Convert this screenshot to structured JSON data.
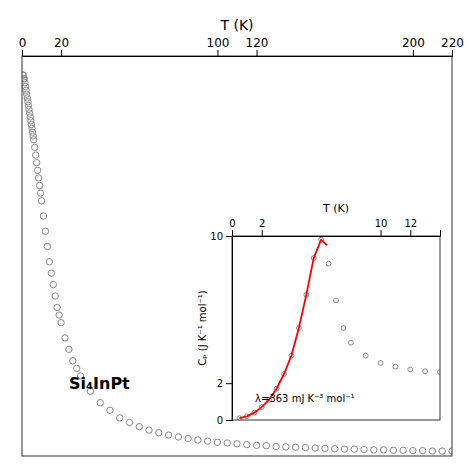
{
  "chart_data": [
    {
      "type": "scatter",
      "xlabel": "T (K)",
      "annotations": [
        "Si₄InPt"
      ],
      "x": [
        0.3,
        0.6,
        0.9,
        1.2,
        1.5,
        1.8,
        2.1,
        2.4,
        2.7,
        3.0,
        3.3,
        3.6,
        3.9,
        4.2,
        4.5,
        4.8,
        5.1,
        5.4,
        5.7,
        6.0,
        6.5,
        7.0,
        7.5,
        8.0,
        8.5,
        9.0,
        9.5,
        10.0,
        11.0,
        12.0,
        13.0,
        14.0,
        15.0,
        16.0,
        17.0,
        18.0,
        19.0,
        20.0,
        22.0,
        24.0,
        26.0,
        28.0,
        30.0,
        35.0,
        40.0,
        45.0,
        50.0,
        55.0,
        60.0,
        65.0,
        70.0,
        75.0,
        80.0,
        85.0,
        90.0,
        95.0,
        100.0,
        105.0,
        110.0,
        115.0,
        120.0,
        125.0,
        130.0,
        135.0,
        140.0,
        145.0,
        150.0,
        155.0,
        160.0,
        165.0,
        170.0,
        175.0,
        180.0,
        185.0,
        190.0,
        195.0,
        200.0,
        205.0,
        210.0,
        215.0,
        220.0
      ],
      "values": [
        1.0,
        1.0,
        0.99,
        0.99,
        0.98,
        0.97,
        0.96,
        0.95,
        0.94,
        0.93,
        0.92,
        0.91,
        0.9,
        0.89,
        0.88,
        0.87,
        0.86,
        0.85,
        0.84,
        0.83,
        0.81,
        0.79,
        0.77,
        0.75,
        0.73,
        0.71,
        0.69,
        0.67,
        0.63,
        0.59,
        0.55,
        0.51,
        0.48,
        0.45,
        0.42,
        0.39,
        0.37,
        0.35,
        0.31,
        0.28,
        0.25,
        0.23,
        0.21,
        0.17,
        0.14,
        0.12,
        0.1,
        0.088,
        0.077,
        0.068,
        0.061,
        0.055,
        0.05,
        0.046,
        0.042,
        0.039,
        0.036,
        0.034,
        0.032,
        0.03,
        0.028,
        0.027,
        0.025,
        0.024,
        0.023,
        0.022,
        0.021,
        0.02,
        0.019,
        0.018,
        0.018,
        0.017,
        0.016,
        0.016,
        0.015,
        0.015,
        0.014,
        0.014,
        0.013,
        0.013,
        0.013
      ],
      "color": "#888888",
      "marker": "circle",
      "xlim": [
        0,
        220
      ],
      "xticks": [
        0,
        20,
        100,
        120,
        200,
        220
      ],
      "ylim": [
        0,
        1.05
      ],
      "tick_labels": "x"
    },
    {
      "type": "scatter",
      "xlabel": "T (K)",
      "ylabel": "Cₚ (J K⁻¹ mol⁻¹)",
      "annotations": [
        "λ=363 mJ K⁻³ mol⁻¹"
      ],
      "series": [
        {
          "type": "scatter",
          "color": "#888888",
          "marker": "circle",
          "x": [
            0.5,
            1.0,
            1.5,
            2.0,
            2.5,
            3.0,
            3.5,
            4.0,
            4.5,
            5.0,
            5.5,
            6.0,
            6.5,
            7.0,
            7.5,
            8.0,
            9.0,
            10.0,
            11.0,
            12.0,
            13.0,
            14.0
          ],
          "values": [
            0.1,
            0.2,
            0.4,
            0.7,
            1.1,
            1.7,
            2.5,
            3.5,
            5.0,
            6.8,
            8.8,
            9.8,
            8.5,
            6.5,
            5.0,
            4.2,
            3.5,
            3.1,
            2.9,
            2.75,
            2.65,
            2.6
          ]
        },
        {
          "type": "line",
          "color": "#ff0000",
          "line_style": "solid",
          "x": [
            0.5,
            1.0,
            1.5,
            2.0,
            2.5,
            3.0,
            3.5,
            4.0,
            4.5,
            5.0,
            5.5,
            6.0,
            6.4
          ],
          "values": [
            0.1,
            0.2,
            0.4,
            0.7,
            1.1,
            1.7,
            2.5,
            3.5,
            5.0,
            6.8,
            8.8,
            9.8,
            9.5
          ]
        }
      ],
      "xlim": [
        0,
        14
      ],
      "xticks": [
        0,
        2,
        10,
        12
      ],
      "ylim": [
        0,
        10
      ],
      "yticks": [
        0,
        2,
        10
      ]
    }
  ]
}
